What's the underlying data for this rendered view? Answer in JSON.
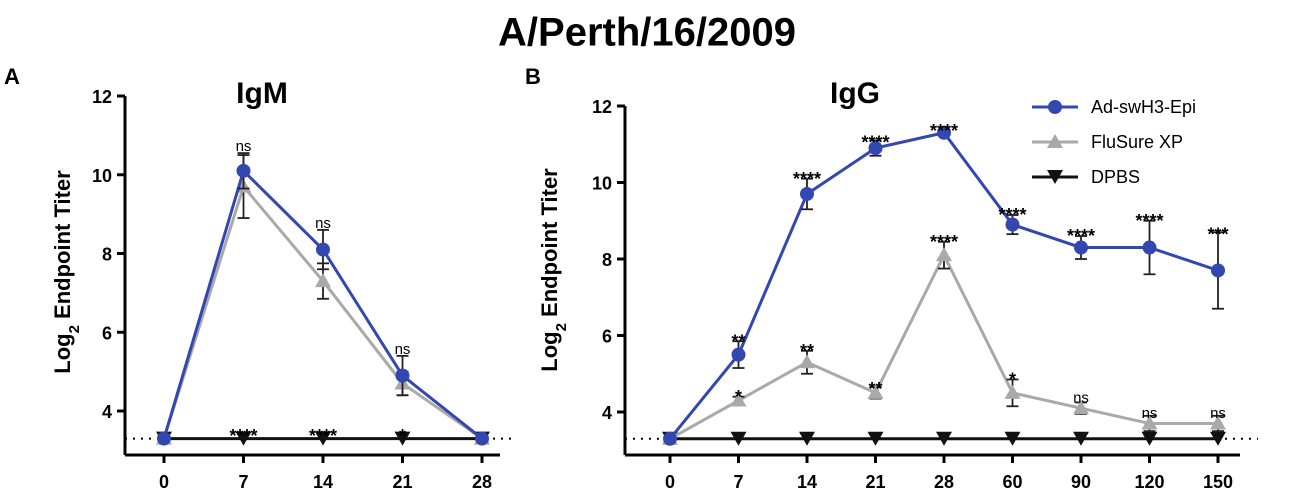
{
  "figure_title": "A/Perth/16/2009",
  "ylabel_prefix": "Log",
  "ylabel_sub": "2",
  "legend": [
    {
      "name": "Ad-swH3-Epi",
      "color": "#3347b0",
      "marker": "circle"
    },
    {
      "name": "FluSure XP",
      "color": "#a9a9a9",
      "marker": "triangle-up"
    },
    {
      "name": "DPBS",
      "color": "#111111",
      "marker": "triangle-down"
    }
  ],
  "chart_data": [
    {
      "panel": "A",
      "type": "line",
      "title": "IgM",
      "ylabel_rest": " Endpoint  Titer",
      "xlabel": "",
      "categories": [
        "0",
        "7",
        "14",
        "21",
        "28"
      ],
      "ylim": [
        3.2,
        12
      ],
      "yticks": [
        4,
        6,
        8,
        10,
        12
      ],
      "baseline": 3.3,
      "series": [
        {
          "name": "Ad-swH3-Epi",
          "values": [
            3.3,
            10.1,
            8.1,
            4.9,
            3.3
          ],
          "err": [
            0,
            0.45,
            0.5,
            0.5,
            0
          ]
        },
        {
          "name": "FluSure XP",
          "values": [
            3.3,
            9.7,
            7.3,
            4.7,
            3.3
          ],
          "err": [
            0,
            0.8,
            0.45,
            0.3,
            0
          ]
        },
        {
          "name": "DPBS",
          "values": [
            3.3,
            3.3,
            3.3,
            3.3,
            3.3
          ],
          "err": [
            0,
            0,
            0,
            0,
            0
          ]
        }
      ],
      "annotations": [
        {
          "category": "7",
          "text": "ns",
          "y": 10.7
        },
        {
          "category": "14",
          "text": "ns",
          "y": 8.75
        },
        {
          "category": "21",
          "text": "ns",
          "y": 5.55
        },
        {
          "category": "7",
          "text": "****",
          "y": 3.47
        },
        {
          "category": "14",
          "text": "****",
          "y": 3.47
        },
        {
          "category": "21",
          "text": "*",
          "y": 3.47
        }
      ]
    },
    {
      "panel": "B",
      "type": "line",
      "title": "IgG",
      "ylabel_rest": " Endpoint Titer",
      "xlabel": "",
      "categories": [
        "0",
        "7",
        "14",
        "21",
        "28",
        "60",
        "90",
        "120",
        "150"
      ],
      "ylim": [
        3.0,
        12
      ],
      "yticks": [
        4,
        6,
        8,
        10,
        12
      ],
      "baseline": 3.3,
      "series": [
        {
          "name": "Ad-swH3-Epi",
          "values": [
            3.3,
            5.5,
            9.7,
            10.9,
            11.3,
            8.9,
            8.3,
            8.3,
            7.7
          ],
          "err": [
            0,
            0.35,
            0.4,
            0.2,
            0,
            0.25,
            0.3,
            0.7,
            1.0
          ]
        },
        {
          "name": "FluSure XP",
          "values": [
            3.3,
            4.3,
            5.3,
            4.5,
            8.1,
            4.5,
            4.1,
            3.7,
            3.7
          ],
          "err": [
            0,
            0.1,
            0.3,
            0.15,
            0.35,
            0.35,
            0.15,
            0.2,
            0.2
          ]
        },
        {
          "name": "DPBS",
          "values": [
            3.3,
            3.3,
            3.3,
            3.3,
            3.3,
            3.3,
            3.3,
            3.3,
            3.3
          ],
          "err": [
            0,
            0,
            0,
            0,
            0,
            0,
            0,
            0,
            0
          ]
        }
      ],
      "annotations": [
        {
          "category": "7",
          "text": "**",
          "y": 5.95
        },
        {
          "category": "14",
          "text": "****",
          "y": 10.2
        },
        {
          "category": "21",
          "text": "****",
          "y": 11.15
        },
        {
          "category": "28",
          "text": "****",
          "y": 11.45
        },
        {
          "category": "60",
          "text": "****",
          "y": 9.25
        },
        {
          "category": "90",
          "text": "****",
          "y": 8.7
        },
        {
          "category": "120",
          "text": "****",
          "y": 9.1
        },
        {
          "category": "150",
          "text": "***",
          "y": 8.75
        },
        {
          "category": "7",
          "text": "*",
          "y": 4.5
        },
        {
          "category": "14",
          "text": "**",
          "y": 5.7
        },
        {
          "category": "21",
          "text": "**",
          "y": 4.7
        },
        {
          "category": "28",
          "text": "****",
          "y": 8.55
        },
        {
          "category": "60",
          "text": "*",
          "y": 4.95
        },
        {
          "category": "90",
          "text": "ns",
          "y": 4.35
        },
        {
          "category": "120",
          "text": "ns",
          "y": 3.95
        },
        {
          "category": "150",
          "text": "ns",
          "y": 3.95
        }
      ]
    }
  ]
}
